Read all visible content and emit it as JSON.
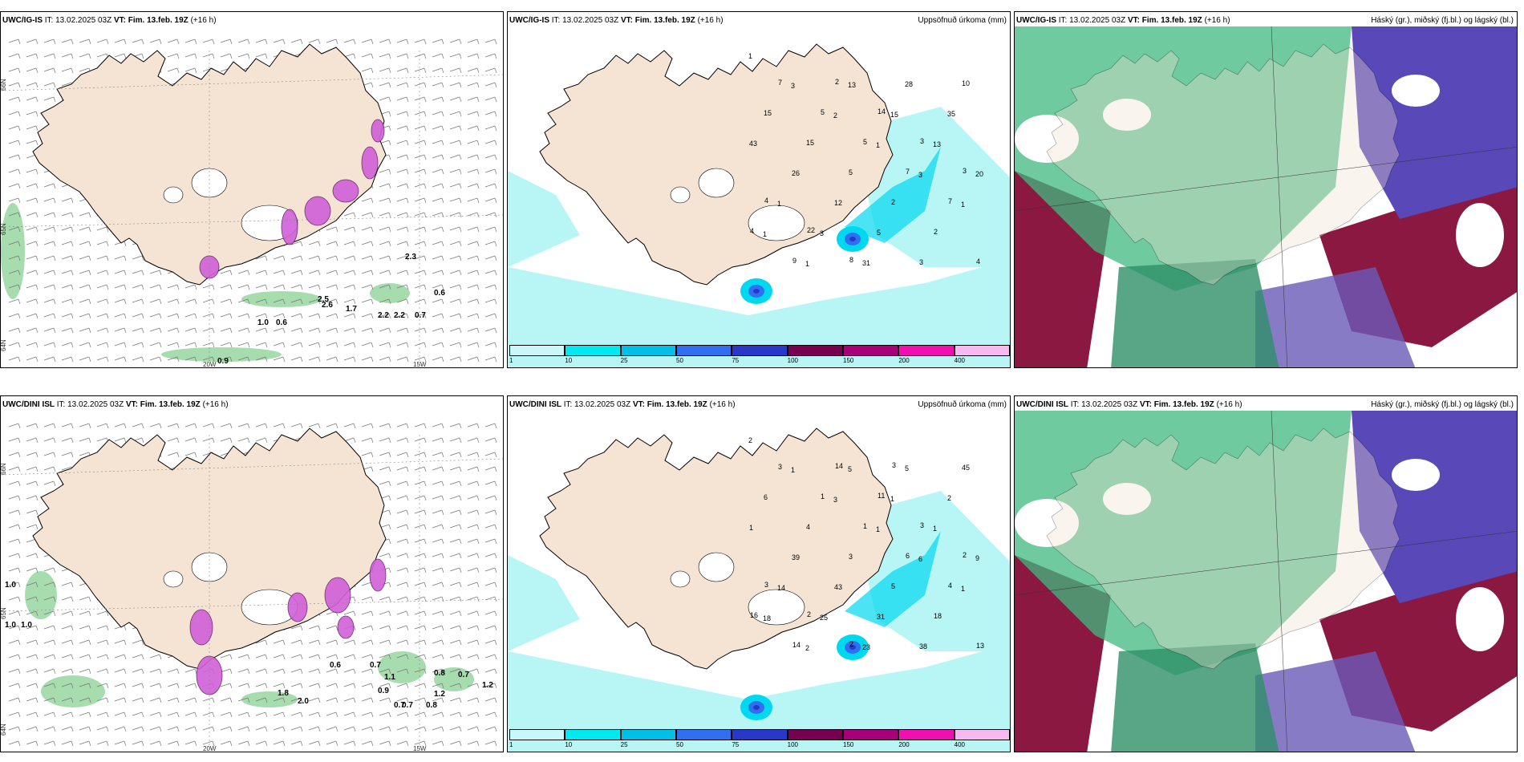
{
  "panels": [
    {
      "model": "UWC/IG-IS",
      "it_label": "IT:",
      "it": "13.02.2025 03Z",
      "vt_label": "VT:",
      "vt": "Fim. 13.feb. 19Z",
      "lead": "(+16 h)",
      "right_title": "",
      "kind": "wind"
    },
    {
      "model": "UWC/IG-IS",
      "it_label": "IT:",
      "it": "13.02.2025 03Z",
      "vt_label": "VT:",
      "vt": "Fim. 13.feb. 19Z",
      "lead": "(+16 h)",
      "right_title": "Uppsöfnuð úrkoma (mm)",
      "kind": "precip"
    },
    {
      "model": "UWC/IG-IS",
      "it_label": "IT:",
      "it": "13.02.2025 03Z",
      "vt_label": "VT:",
      "vt": "Fim. 13.feb. 19Z",
      "lead": "(+16 h)",
      "right_title": "Háský (gr.), miðský (fj.bl.) og lágský (bl.)",
      "kind": "cloud"
    },
    {
      "model": "UWC/DINI ISL",
      "it_label": "IT:",
      "it": "13.02.2025 03Z",
      "vt_label": "VT:",
      "vt": "Fim. 13.feb. 19Z",
      "lead": "(+16 h)",
      "right_title": "",
      "kind": "wind"
    },
    {
      "model": "UWC/DINI ISL",
      "it_label": "IT:",
      "it": "13.02.2025 03Z",
      "vt_label": "VT:",
      "vt": "Fim. 13.feb. 19Z",
      "lead": "(+16 h)",
      "right_title": "Uppsöfnuð úrkoma (mm)",
      "kind": "precip"
    },
    {
      "model": "UWC/DINI ISL",
      "it_label": "IT:",
      "it": "13.02.2025 03Z",
      "vt_label": "VT:",
      "vt": "Fim. 13.feb. 19Z",
      "lead": "(+16 h)",
      "right_title": "Háský (gr.), miðský (fj.bl.) og lágský (bl.)",
      "kind": "cloud"
    }
  ],
  "axis_labels": {
    "lon_20": "20W",
    "lon_15": "15W",
    "lat_66": "66N",
    "lat_65": "65N",
    "lat_64": "64N"
  },
  "colorbar": {
    "ticks": [
      "1",
      "10",
      "25",
      "50",
      "75",
      "100",
      "150",
      "200",
      "400"
    ],
    "colors": [
      "#c8f8f8",
      "#00e8f0",
      "#00c0e8",
      "#3070f0",
      "#2838c8",
      "#780050",
      "#a80078",
      "#f010b0",
      "#f8b8f0"
    ]
  },
  "wind_labels_top": [
    "2.6",
    "1.7",
    "2.2",
    "2.2",
    "0.7",
    "0.6",
    "1.0",
    "0.6",
    "0.9",
    "2.3",
    "2.5"
  ],
  "wind_labels_bottom": [
    "1.0",
    "1.0",
    "1.0",
    "0.6",
    "0.7",
    "0.9",
    "1.1",
    "0.7",
    "0.7",
    "0.8",
    "0.8",
    "0.7",
    "1.2",
    "1.2",
    "1.8",
    "2.0"
  ],
  "precip_labels_top": [
    "1",
    "3",
    "2",
    "1",
    "3",
    "1",
    "1",
    "1",
    "13",
    "15",
    "13",
    "20",
    "1",
    "3",
    "31",
    "28",
    "35",
    "43",
    "26",
    "12",
    "5",
    "3",
    "10",
    "15",
    "15",
    "5",
    "2",
    "2",
    "4",
    "7",
    "5",
    "5",
    "7",
    "7",
    "4",
    "9",
    "2",
    "14",
    "3",
    "3",
    "4",
    "22",
    "8"
  ],
  "precip_labels_bottom": [
    "2",
    "1",
    "3",
    "1",
    "6",
    "1",
    "18",
    "2",
    "5",
    "1",
    "1",
    "9",
    "14",
    "25",
    "23",
    "5",
    "2",
    "1",
    "39",
    "43",
    "31",
    "38",
    "45",
    "6",
    "4",
    "3",
    "5",
    "18",
    "13",
    "3",
    "1",
    "1",
    "6",
    "4",
    "16",
    "14",
    "14",
    "11",
    "3",
    "2",
    "3",
    "2",
    "2",
    "3"
  ],
  "colors": {
    "land": "#f5e4d4",
    "sea": "#ffffff",
    "precip_light": "#b8f6f6",
    "wind_pink": "#d060d8",
    "wind_green": "#5cbf6c"
  }
}
